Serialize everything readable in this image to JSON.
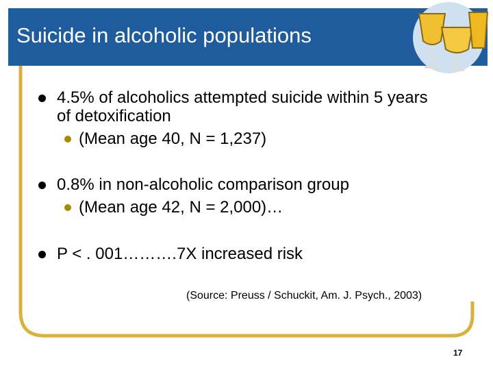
{
  "title": "Suicide in alcoholic populations",
  "bullets": [
    {
      "text": "4.5% of alcoholics attempted suicide within 5 years of detoxification",
      "sub": [
        "(Mean age 40, N = 1,237)"
      ]
    },
    {
      "text": "0.8%  in non-alcoholic comparison group",
      "sub": [
        "(Mean age 42, N = 2,000)…"
      ]
    },
    {
      "text": "P < . 001……….7X increased risk",
      "sub": []
    }
  ],
  "source": "(Source: Preuss / Schuckit, Am. J. Psych., 2003)",
  "page_number": 17
}
